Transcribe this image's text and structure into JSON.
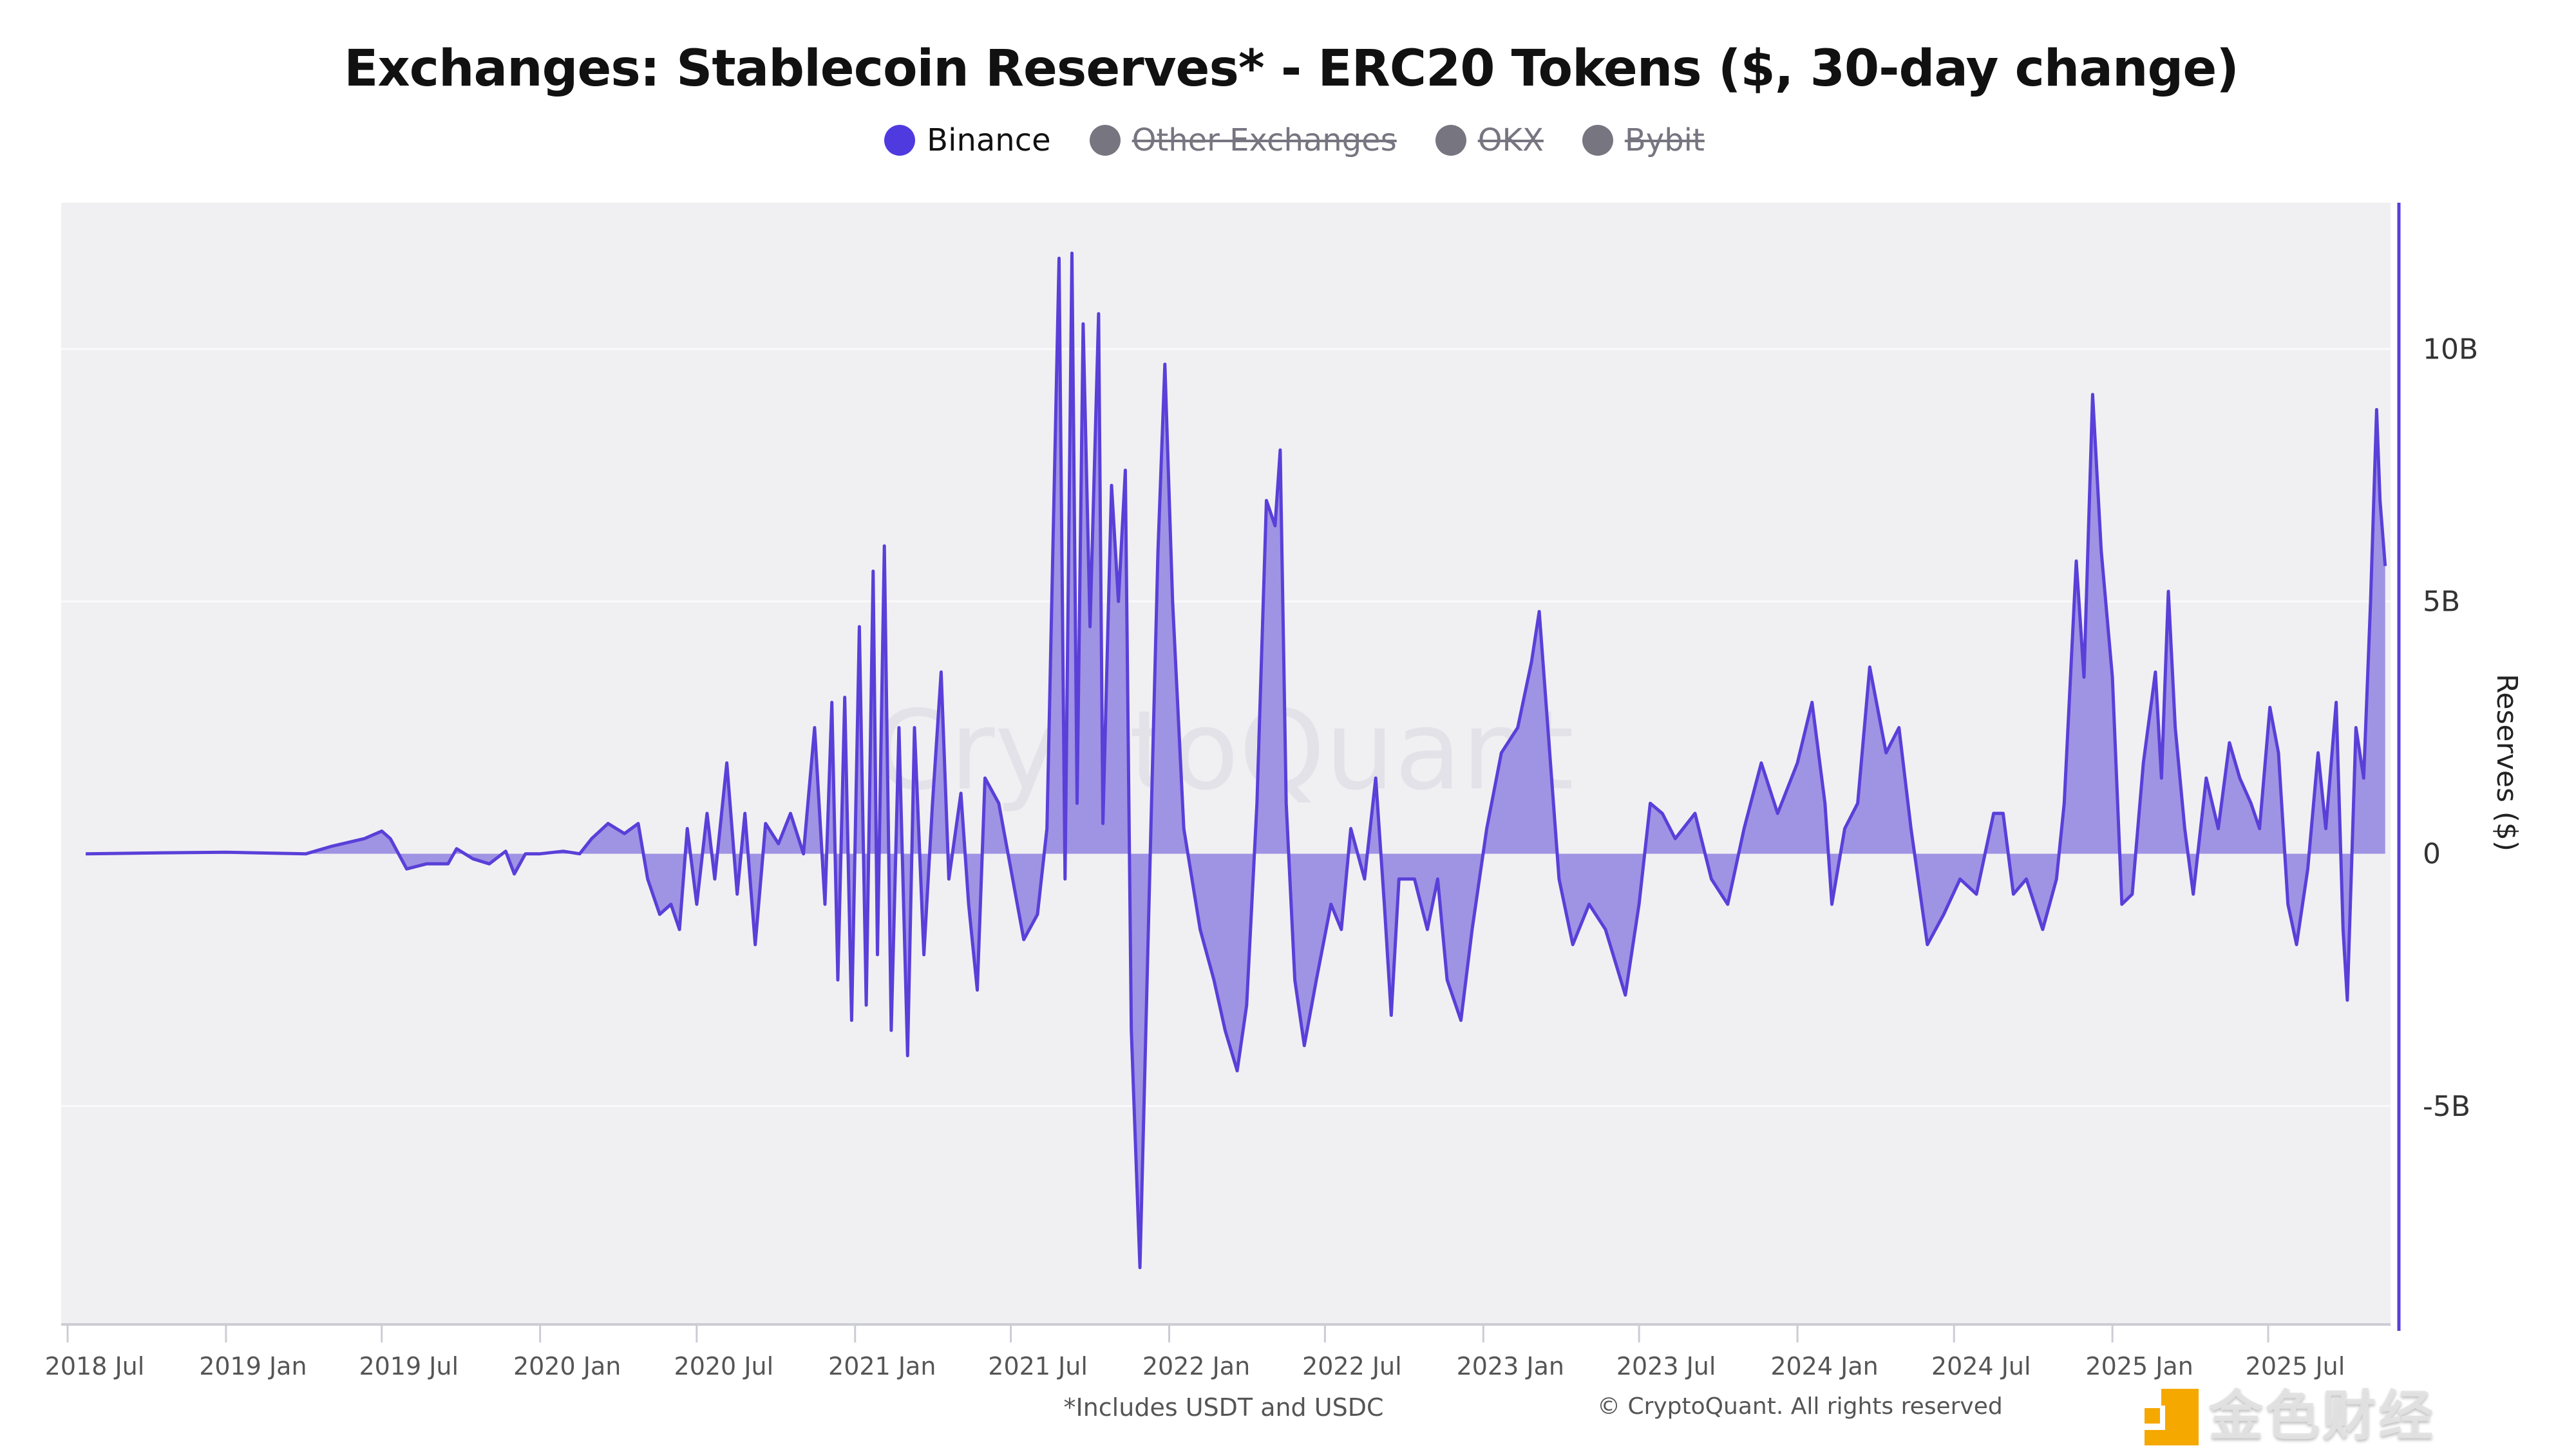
{
  "chart_data": {
    "type": "area",
    "title": "Exchanges: Stablecoin Reserves* - ERC20 Tokens ($, 30-day change)",
    "ylabel": "Reserves ($)",
    "xlabel": "",
    "footnote": "*Includes USDT and USDC",
    "watermark": "CryptoQuant",
    "copyright": "© CryptoQuant. All rights reserved",
    "overlay_logo": "金色财经",
    "y_unit": "billion USD",
    "ylim": [
      -9.3,
      12.9
    ],
    "y_axis_side": "right",
    "grid": true,
    "legend_placement": "top",
    "colors": {
      "line": "#5a3fd8",
      "fill": "#9f93e4",
      "plot_bg": "#f0f0f3",
      "disabled": "#777580"
    },
    "legend": [
      {
        "name": "Binance",
        "enabled": true,
        "color": "#4f3ae0"
      },
      {
        "name": "Other Exchanges",
        "enabled": false,
        "color": "#777580"
      },
      {
        "name": "OKX",
        "enabled": false,
        "color": "#777580"
      },
      {
        "name": "Bybit",
        "enabled": false,
        "color": "#777580"
      }
    ],
    "x_ticks": [
      "2018 Jul",
      "2019 Jan",
      "2019 Jul",
      "2020 Jan",
      "2020 Jul",
      "2021 Jan",
      "2021 Jul",
      "2022 Jan",
      "2022 Jul",
      "2023 Jan",
      "2023 Jul",
      "2024 Jan",
      "2024 Jul",
      "2025 Jan",
      "2025 Jul"
    ],
    "y_ticks": [
      {
        "value": 10,
        "label": "10B"
      },
      {
        "value": 5,
        "label": "5B"
      },
      {
        "value": 0,
        "label": "0"
      },
      {
        "value": -5,
        "label": "-5B"
      }
    ],
    "series": [
      {
        "name": "Binance",
        "points": [
          [
            "2018-07-22",
            0
          ],
          [
            "2018-10-23",
            0.02
          ],
          [
            "2019-01-01",
            0.03
          ],
          [
            "2019-04-04",
            0
          ],
          [
            "2019-05-04",
            0.15
          ],
          [
            "2019-06-11",
            0.3
          ],
          [
            "2019-07-01",
            0.45
          ],
          [
            "2019-07-11",
            0.3
          ],
          [
            "2019-07-30",
            -0.3
          ],
          [
            "2019-08-22",
            -0.2
          ],
          [
            "2019-09-16",
            -0.2
          ],
          [
            "2019-09-26",
            0.1
          ],
          [
            "2019-10-15",
            -0.1
          ],
          [
            "2019-11-03",
            -0.2
          ],
          [
            "2019-11-22",
            0.05
          ],
          [
            "2019-12-02",
            -0.4
          ],
          [
            "2019-12-15",
            0
          ],
          [
            "2020-01-01",
            0
          ],
          [
            "2020-01-28",
            0.05
          ],
          [
            "2020-02-16",
            0
          ],
          [
            "2020-03-01",
            0.3
          ],
          [
            "2020-03-20",
            0.6
          ],
          [
            "2020-04-08",
            0.4
          ],
          [
            "2020-04-24",
            0.6
          ],
          [
            "2020-05-05",
            -0.5
          ],
          [
            "2020-05-19",
            -1.2
          ],
          [
            "2020-06-01",
            -1.0
          ],
          [
            "2020-06-11",
            -1.5
          ],
          [
            "2020-06-20",
            0.5
          ],
          [
            "2020-07-01",
            -1.0
          ],
          [
            "2020-07-13",
            0.8
          ],
          [
            "2020-07-22",
            -0.5
          ],
          [
            "2020-08-05",
            1.8
          ],
          [
            "2020-08-17",
            -0.8
          ],
          [
            "2020-08-26",
            0.8
          ],
          [
            "2020-09-07",
            -1.8
          ],
          [
            "2020-09-19",
            0.6
          ],
          [
            "2020-10-04",
            0.2
          ],
          [
            "2020-10-18",
            0.8
          ],
          [
            "2020-11-02",
            0
          ],
          [
            "2020-11-15",
            2.5
          ],
          [
            "2020-11-27",
            -1.0
          ],
          [
            "2020-12-05",
            3.0
          ],
          [
            "2020-12-12",
            -2.5
          ],
          [
            "2020-12-20",
            3.1
          ],
          [
            "2020-12-28",
            -3.3
          ],
          [
            "2021-01-06",
            4.5
          ],
          [
            "2021-01-14",
            -3.0
          ],
          [
            "2021-01-22",
            5.6
          ],
          [
            "2021-01-27",
            -2.0
          ],
          [
            "2021-02-04",
            6.1
          ],
          [
            "2021-02-12",
            -3.5
          ],
          [
            "2021-02-21",
            2.5
          ],
          [
            "2021-03-03",
            -4.0
          ],
          [
            "2021-03-11",
            2.5
          ],
          [
            "2021-03-22",
            -2.0
          ],
          [
            "2021-04-01",
            1.0
          ],
          [
            "2021-04-11",
            3.6
          ],
          [
            "2021-04-20",
            -0.5
          ],
          [
            "2021-05-04",
            1.2
          ],
          [
            "2021-05-13",
            -1.0
          ],
          [
            "2021-05-23",
            -2.7
          ],
          [
            "2021-06-01",
            1.5
          ],
          [
            "2021-06-17",
            1.0
          ],
          [
            "2021-07-01",
            -0.3
          ],
          [
            "2021-07-16",
            -1.7
          ],
          [
            "2021-08-01",
            -1.2
          ],
          [
            "2021-08-12",
            0.5
          ],
          [
            "2021-08-26",
            11.8
          ],
          [
            "2021-09-02",
            -0.5
          ],
          [
            "2021-09-10",
            11.9
          ],
          [
            "2021-09-16",
            1.0
          ],
          [
            "2021-09-23",
            10.5
          ],
          [
            "2021-10-01",
            4.5
          ],
          [
            "2021-10-11",
            10.7
          ],
          [
            "2021-10-16",
            0.6
          ],
          [
            "2021-10-26",
            7.3
          ],
          [
            "2021-11-03",
            5.0
          ],
          [
            "2021-11-11",
            7.6
          ],
          [
            "2021-11-18",
            -3.5
          ],
          [
            "2021-11-28",
            -8.2
          ],
          [
            "2021-12-10",
            0
          ],
          [
            "2021-12-19",
            6.0
          ],
          [
            "2021-12-27",
            9.7
          ],
          [
            "2022-01-05",
            5.0
          ],
          [
            "2022-01-18",
            0.5
          ],
          [
            "2022-02-06",
            -1.5
          ],
          [
            "2022-02-22",
            -2.5
          ],
          [
            "2022-03-07",
            -3.5
          ],
          [
            "2022-03-21",
            -4.3
          ],
          [
            "2022-04-01",
            -3.0
          ],
          [
            "2022-04-13",
            1.0
          ],
          [
            "2022-04-24",
            7.0
          ],
          [
            "2022-05-04",
            6.5
          ],
          [
            "2022-05-10",
            8.0
          ],
          [
            "2022-05-17",
            1.0
          ],
          [
            "2022-05-27",
            -2.5
          ],
          [
            "2022-06-07",
            -3.8
          ],
          [
            "2022-06-21",
            -2.5
          ],
          [
            "2022-07-08",
            -1.0
          ],
          [
            "2022-07-20",
            -1.5
          ],
          [
            "2022-07-31",
            0.5
          ],
          [
            "2022-08-16",
            -0.5
          ],
          [
            "2022-08-29",
            1.5
          ],
          [
            "2022-09-08",
            -1.0
          ],
          [
            "2022-09-16",
            -3.2
          ],
          [
            "2022-09-25",
            -0.5
          ],
          [
            "2022-10-13",
            -0.5
          ],
          [
            "2022-10-28",
            -1.5
          ],
          [
            "2022-11-09",
            -0.5
          ],
          [
            "2022-11-20",
            -2.5
          ],
          [
            "2022-12-06",
            -3.3
          ],
          [
            "2022-12-19",
            -1.5
          ],
          [
            "2023-01-05",
            0.5
          ],
          [
            "2023-01-22",
            2.0
          ],
          [
            "2023-02-10",
            2.5
          ],
          [
            "2023-02-26",
            3.8
          ],
          [
            "2023-03-07",
            4.8
          ],
          [
            "2023-03-17",
            2.5
          ],
          [
            "2023-03-30",
            -0.5
          ],
          [
            "2023-04-15",
            -1.8
          ],
          [
            "2023-05-04",
            -1.0
          ],
          [
            "2023-05-23",
            -1.5
          ],
          [
            "2023-06-15",
            -2.8
          ],
          [
            "2023-07-01",
            -1.0
          ],
          [
            "2023-07-14",
            1.0
          ],
          [
            "2023-07-28",
            0.8
          ],
          [
            "2023-08-12",
            0.3
          ],
          [
            "2023-09-04",
            0.8
          ],
          [
            "2023-09-23",
            -0.5
          ],
          [
            "2023-10-12",
            -1.0
          ],
          [
            "2023-10-31",
            0.5
          ],
          [
            "2023-11-20",
            1.8
          ],
          [
            "2023-12-09",
            0.8
          ],
          [
            "2024-01-01",
            1.8
          ],
          [
            "2024-01-18",
            3.0
          ],
          [
            "2024-02-02",
            1.0
          ],
          [
            "2024-02-10",
            -1.0
          ],
          [
            "2024-02-25",
            0.5
          ],
          [
            "2024-03-11",
            1.0
          ],
          [
            "2024-03-25",
            3.7
          ],
          [
            "2024-04-13",
            2.0
          ],
          [
            "2024-04-28",
            2.5
          ],
          [
            "2024-05-12",
            0.5
          ],
          [
            "2024-05-31",
            -1.8
          ],
          [
            "2024-06-19",
            -1.2
          ],
          [
            "2024-07-08",
            -0.5
          ],
          [
            "2024-07-27",
            -0.8
          ],
          [
            "2024-08-16",
            0.8
          ],
          [
            "2024-08-27",
            0.8
          ],
          [
            "2024-09-08",
            -0.8
          ],
          [
            "2024-09-23",
            -0.5
          ],
          [
            "2024-10-12",
            -1.5
          ],
          [
            "2024-10-28",
            -0.5
          ],
          [
            "2024-11-06",
            1.0
          ],
          [
            "2024-11-20",
            5.8
          ],
          [
            "2024-11-29",
            3.5
          ],
          [
            "2024-12-09",
            9.1
          ],
          [
            "2024-12-19",
            6.0
          ],
          [
            "2025-01-01",
            3.5
          ],
          [
            "2025-01-12",
            -1.0
          ],
          [
            "2025-01-24",
            -0.8
          ],
          [
            "2025-02-06",
            1.8
          ],
          [
            "2025-02-20",
            3.6
          ],
          [
            "2025-02-27",
            1.5
          ],
          [
            "2025-03-07",
            5.2
          ],
          [
            "2025-03-15",
            2.5
          ],
          [
            "2025-03-26",
            0.5
          ],
          [
            "2025-04-05",
            -0.8
          ],
          [
            "2025-04-20",
            1.5
          ],
          [
            "2025-05-04",
            0.5
          ],
          [
            "2025-05-17",
            2.2
          ],
          [
            "2025-05-29",
            1.5
          ],
          [
            "2025-06-11",
            1.0
          ],
          [
            "2025-06-21",
            0.5
          ],
          [
            "2025-07-03",
            2.9
          ],
          [
            "2025-07-13",
            2.0
          ],
          [
            "2025-07-24",
            -1.0
          ],
          [
            "2025-08-03",
            -1.8
          ],
          [
            "2025-08-16",
            -0.3
          ],
          [
            "2025-08-28",
            2.0
          ],
          [
            "2025-09-06",
            0.5
          ],
          [
            "2025-09-18",
            3.0
          ],
          [
            "2025-09-26",
            -1.5
          ],
          [
            "2025-10-01",
            -2.9
          ],
          [
            "2025-10-11",
            2.5
          ],
          [
            "2025-10-20",
            1.5
          ],
          [
            "2025-10-28",
            5.0
          ],
          [
            "2025-11-04",
            8.8
          ],
          [
            "2025-11-08",
            7.0
          ],
          [
            "2025-11-14",
            5.7
          ]
        ]
      }
    ]
  }
}
